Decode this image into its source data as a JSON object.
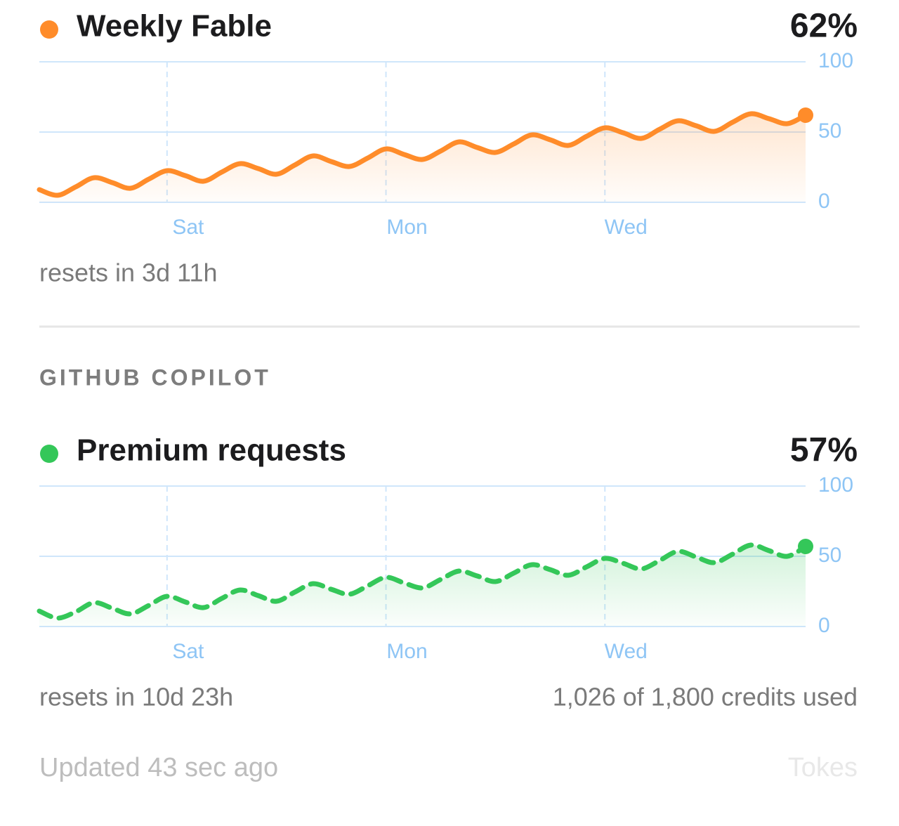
{
  "chart_data": [
    {
      "type": "line",
      "title": "Weekly Fable",
      "headline": "62%",
      "caption": "resets in 3d 11h",
      "color": "#ff8c2a",
      "dashed": false,
      "categories": [
        null,
        null,
        null,
        null,
        null,
        null,
        null,
        "Sat",
        null,
        null,
        null,
        null,
        null,
        null,
        null,
        null,
        null,
        null,
        null,
        "Mon",
        null,
        null,
        null,
        null,
        null,
        null,
        null,
        null,
        null,
        null,
        null,
        "Wed",
        null,
        null,
        null,
        null,
        null,
        null,
        null,
        null,
        null,
        null,
        null
      ],
      "values": [
        9,
        5,
        11,
        17.5,
        14,
        10,
        16.5,
        22.5,
        19,
        15,
        21.5,
        27.5,
        24,
        20,
        26.5,
        33,
        29,
        25.5,
        31.5,
        38,
        34,
        30.5,
        36.5,
        43,
        39,
        35.5,
        41.5,
        48,
        44.5,
        40.5,
        47,
        53,
        49.5,
        45.5,
        52,
        58,
        54.5,
        50.5,
        57,
        63,
        59.5,
        56,
        62
      ],
      "ylim": [
        0,
        100
      ],
      "yticks": [
        0,
        50,
        100
      ],
      "grid": true
    },
    {
      "type": "line",
      "section": "GITHUB COPILOT",
      "title": "Premium requests",
      "headline": "57%",
      "caption": "resets in 10d 23h",
      "detail": "1,026 of 1,800 credits used",
      "color": "#34c759",
      "dashed": true,
      "categories": [
        null,
        null,
        null,
        null,
        null,
        null,
        null,
        "Sat",
        null,
        null,
        null,
        null,
        null,
        null,
        null,
        null,
        null,
        null,
        null,
        "Mon",
        null,
        null,
        null,
        null,
        null,
        null,
        null,
        null,
        null,
        null,
        null,
        "Wed",
        null,
        null,
        null,
        null,
        null,
        null,
        null,
        null,
        null,
        null,
        null
      ],
      "values": [
        11,
        6,
        10.5,
        17,
        13,
        9,
        15,
        21.5,
        17.5,
        13.5,
        20,
        26,
        22,
        18,
        24.5,
        30.5,
        26.5,
        23,
        29,
        35,
        31,
        27.5,
        33.5,
        39.5,
        36,
        32,
        38,
        44,
        40.5,
        36.5,
        42.5,
        48.5,
        45,
        41,
        47,
        53.5,
        49.5,
        45.5,
        51.5,
        58,
        54,
        50,
        57
      ],
      "ylim": [
        0,
        100
      ],
      "yticks": [
        0,
        50,
        100
      ],
      "grid": true
    }
  ],
  "footer": {
    "updated": "Updated 43 sec ago",
    "brand": "Tokes"
  }
}
